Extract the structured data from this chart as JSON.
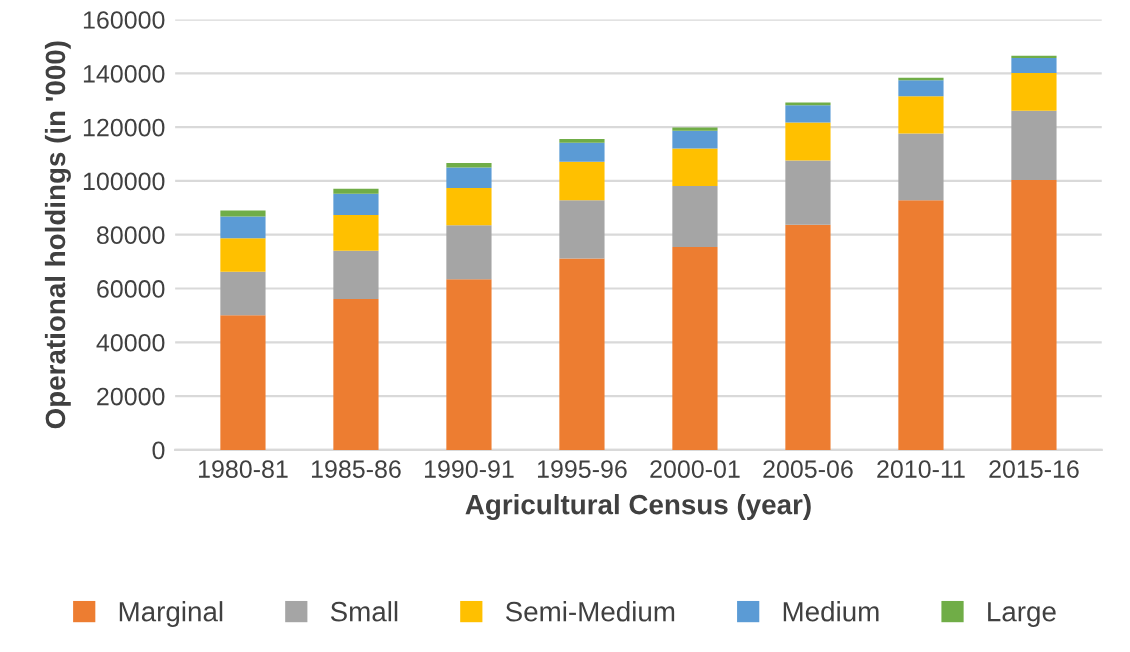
{
  "chart_data": {
    "type": "bar",
    "stacked": true,
    "xlabel": "Agricultural Census (year)",
    "ylabel": "Operational holdings (in '000)",
    "categories": [
      "1980-81",
      "1985-86",
      "1990-91",
      "1995-96",
      "2000-01",
      "2005-06",
      "2010-11",
      "2015-16"
    ],
    "series": [
      {
        "name": "Marginal",
        "color": "#ed7d31",
        "values": [
          50100,
          56100,
          63400,
          71200,
          75400,
          83700,
          92800,
          100300
        ]
      },
      {
        "name": "Small",
        "color": "#a5a5a5",
        "values": [
          16100,
          17900,
          20100,
          21600,
          22700,
          23900,
          24800,
          25800
        ]
      },
      {
        "name": "Semi-Medium",
        "color": "#ffc000",
        "values": [
          12500,
          13300,
          13900,
          14300,
          14000,
          14100,
          13900,
          14000
        ]
      },
      {
        "name": "Medium",
        "color": "#5b9bd5",
        "values": [
          8100,
          7900,
          7600,
          7100,
          6600,
          6400,
          5900,
          5600
        ]
      },
      {
        "name": "Large",
        "color": "#70ad47",
        "values": [
          2200,
          1900,
          1700,
          1400,
          1200,
          1100,
          1000,
          800
        ]
      }
    ],
    "ylim": [
      0,
      160000
    ],
    "yticks": [
      0,
      20000,
      40000,
      60000,
      80000,
      100000,
      120000,
      140000,
      160000
    ],
    "grid": "y",
    "legend": "bottom"
  }
}
